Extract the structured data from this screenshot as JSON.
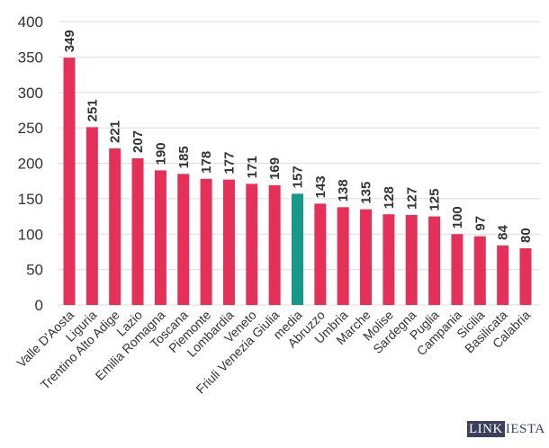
{
  "chart_data": {
    "type": "bar",
    "categories": [
      "Valle D'Aosta",
      "Liguria",
      "Trentino Alto Adige",
      "Lazio",
      "Emilia Romagna",
      "Toscana",
      "Piemonte",
      "Lombardia",
      "Veneto",
      "Friuli Venezia Giulia",
      "media",
      "Abruzzo",
      "Umbria",
      "Marche",
      "Molise",
      "Sardegna",
      "Puglia",
      "Campania",
      "Sicilia",
      "Basilicata",
      "Calabria"
    ],
    "values": [
      349,
      251,
      221,
      207,
      190,
      185,
      178,
      177,
      171,
      169,
      157,
      143,
      138,
      135,
      128,
      127,
      125,
      100,
      97,
      84,
      80
    ],
    "highlight": "media",
    "colors": {
      "bar": "#e5305a",
      "highlight": "#17998a",
      "grid": "#dddddd",
      "text": "#333333"
    },
    "ylim": [
      0,
      400
    ],
    "yticks": [
      0,
      50,
      100,
      150,
      200,
      250,
      300,
      350,
      400
    ],
    "grid": true,
    "data_labels": true
  },
  "logo": {
    "part1": "LINK",
    "part2": "IESTA"
  }
}
